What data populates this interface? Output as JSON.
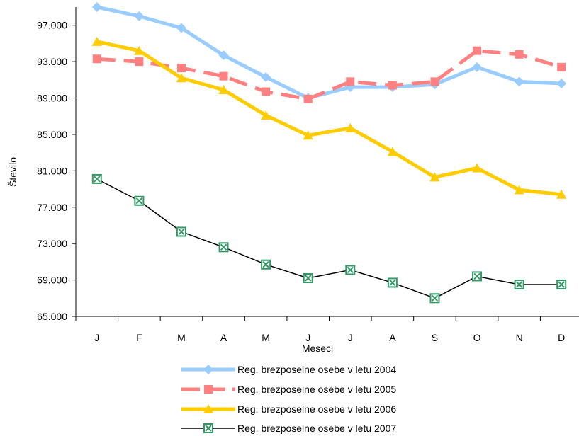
{
  "chart_data": {
    "type": "line",
    "title": "",
    "xlabel": "Meseci",
    "ylabel": "Število",
    "categories": [
      "J",
      "F",
      "M",
      "A",
      "M",
      "J",
      "J",
      "A",
      "S",
      "O",
      "N",
      "D"
    ],
    "ylim": [
      65000,
      99000
    ],
    "yticks": [
      65000,
      69000,
      73000,
      77000,
      81000,
      85000,
      89000,
      93000,
      97000
    ],
    "ytick_labels": [
      "65.000",
      "69.000",
      "73.000",
      "77.000",
      "81.000",
      "85.000",
      "89.000",
      "93.000",
      "97.000"
    ],
    "grid": false,
    "legend_position": "bottom",
    "series": [
      {
        "name": "Reg. brezposelne osebe v letu 2004",
        "color": "#99CCFF",
        "marker": "diamond",
        "dash": "solid",
        "values": [
          99000,
          98000,
          96700,
          93700,
          91300,
          89000,
          90200,
          90200,
          90500,
          92400,
          90800,
          90600
        ]
      },
      {
        "name": "Reg. brezposelne osebe v letu 2005",
        "color": "#FF8080",
        "marker": "square",
        "dash": "dashed",
        "values": [
          93300,
          93000,
          92300,
          91400,
          89700,
          88900,
          90800,
          90400,
          90800,
          94200,
          93800,
          92400
        ]
      },
      {
        "name": "Reg. brezposelne osebe v letu 2006",
        "color": "#FFCC00",
        "marker": "triangle",
        "dash": "solid",
        "values": [
          95200,
          94200,
          91200,
          89900,
          87100,
          84900,
          85700,
          83100,
          80300,
          81300,
          78900,
          78400
        ]
      },
      {
        "name": "Reg. brezposelne osebe v letu 2007",
        "color": "#000000",
        "marker_color": "#339966",
        "marker": "box-x",
        "dash": "solid",
        "values": [
          80100,
          77700,
          74300,
          72600,
          70700,
          69200,
          70100,
          68700,
          67000,
          69400,
          68500,
          68500
        ]
      }
    ]
  }
}
